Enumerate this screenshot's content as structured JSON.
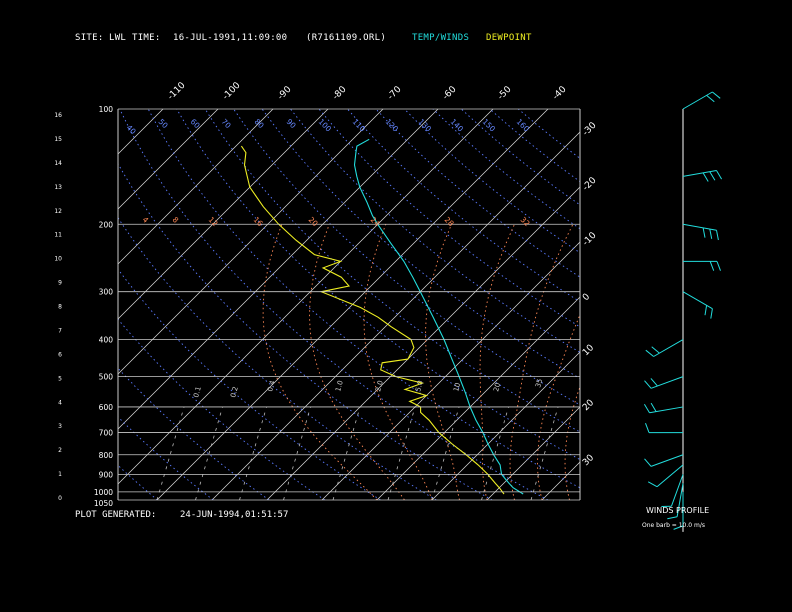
{
  "header": {
    "site_label": "SITE:",
    "site_value": "LWL",
    "time_label": "TIME:",
    "time_value": "16-JUL-1991,11:09:00",
    "file_value": "(R7161109.ORL)",
    "temp_legend": "TEMP/WINDS",
    "dew_legend": "DEWPOINT",
    "temp_color": "#22dddd",
    "dew_color": "#eeee22"
  },
  "footer": {
    "generated_label": "PLOT GENERATED:",
    "generated_value": "24-JUN-1994,01:51:57",
    "winds_title": "WINDS PROFILE",
    "barb_note": "One barb = 10.0 m/s"
  },
  "chart_data": {
    "type": "line",
    "pressure_levels": [
      "100",
      "200",
      "300",
      "400",
      "500",
      "600",
      "700",
      "800",
      "900",
      "1000",
      "1050"
    ],
    "height_km_ticks": [
      "16",
      "15",
      "14",
      "13",
      "12",
      "11",
      "10",
      "9",
      "8",
      "7",
      "6",
      "5",
      "4",
      "3",
      "2",
      "1",
      "0"
    ],
    "temperature_ticks": [
      "-110",
      "-100",
      "-90",
      "-80",
      "-70",
      "-60",
      "-50",
      "-40",
      "-30",
      "-20",
      "-10",
      "0",
      "10",
      "20",
      "30"
    ],
    "dry_adiabat_labels": [
      "40",
      "50",
      "60",
      "70",
      "80",
      "90",
      "100",
      "110",
      "120",
      "130",
      "140",
      "150",
      "160"
    ],
    "mixing_ratio_labels": [
      "0.1",
      "0.2",
      "0.4",
      "1.0",
      "2.0",
      "5.0",
      "10",
      "20",
      "35"
    ],
    "series": [
      {
        "name": "TEMP/WINDS",
        "points": [
          {
            "p": 1013,
            "t": 25.5
          },
          {
            "p": 975,
            "t": 22.5
          },
          {
            "p": 950,
            "t": 21
          },
          {
            "p": 925,
            "t": 19.5
          },
          {
            "p": 900,
            "t": 18
          },
          {
            "p": 875,
            "t": 17
          },
          {
            "p": 850,
            "t": 16
          },
          {
            "p": 800,
            "t": 13
          },
          {
            "p": 750,
            "t": 10
          },
          {
            "p": 700,
            "t": 7
          },
          {
            "p": 650,
            "t": 3.5
          },
          {
            "p": 600,
            "t": 0
          },
          {
            "p": 550,
            "t": -3.5
          },
          {
            "p": 500,
            "t": -7.5
          },
          {
            "p": 450,
            "t": -12
          },
          {
            "p": 400,
            "t": -17
          },
          {
            "p": 350,
            "t": -23
          },
          {
            "p": 300,
            "t": -30
          },
          {
            "p": 275,
            "t": -34
          },
          {
            "p": 250,
            "t": -38.5
          },
          {
            "p": 225,
            "t": -44
          },
          {
            "p": 200,
            "t": -50
          },
          {
            "p": 190,
            "t": -52.5
          },
          {
            "p": 175,
            "t": -56
          },
          {
            "p": 160,
            "t": -60
          },
          {
            "p": 150,
            "t": -62.5
          },
          {
            "p": 140,
            "t": -65
          },
          {
            "p": 130,
            "t": -67
          },
          {
            "p": 125,
            "t": -68
          },
          {
            "p": 120,
            "t": -67
          }
        ]
      },
      {
        "name": "DEWPOINT",
        "points": [
          {
            "p": 1013,
            "t": 22
          },
          {
            "p": 975,
            "t": 20
          },
          {
            "p": 950,
            "t": 18.5
          },
          {
            "p": 925,
            "t": 17
          },
          {
            "p": 900,
            "t": 15.5
          },
          {
            "p": 850,
            "t": 12
          },
          {
            "p": 800,
            "t": 8
          },
          {
            "p": 750,
            "t": 3.5
          },
          {
            "p": 700,
            "t": -1
          },
          {
            "p": 650,
            "t": -5
          },
          {
            "p": 620,
            "t": -8
          },
          {
            "p": 600,
            "t": -9
          },
          {
            "p": 580,
            "t": -12
          },
          {
            "p": 560,
            "t": -10
          },
          {
            "p": 540,
            "t": -15
          },
          {
            "p": 520,
            "t": -13
          },
          {
            "p": 500,
            "t": -19
          },
          {
            "p": 480,
            "t": -23
          },
          {
            "p": 460,
            "t": -24
          },
          {
            "p": 450,
            "t": -20
          },
          {
            "p": 420,
            "t": -21
          },
          {
            "p": 400,
            "t": -23
          },
          {
            "p": 370,
            "t": -29
          },
          {
            "p": 350,
            "t": -33
          },
          {
            "p": 330,
            "t": -38
          },
          {
            "p": 300,
            "t": -48
          },
          {
            "p": 290,
            "t": -44
          },
          {
            "p": 275,
            "t": -47
          },
          {
            "p": 260,
            "t": -52
          },
          {
            "p": 250,
            "t": -50
          },
          {
            "p": 240,
            "t": -56
          },
          {
            "p": 220,
            "t": -62
          },
          {
            "p": 200,
            "t": -68
          },
          {
            "p": 180,
            "t": -74
          },
          {
            "p": 160,
            "t": -80
          },
          {
            "p": 140,
            "t": -85
          },
          {
            "p": 130,
            "t": -87
          },
          {
            "p": 125,
            "t": -89
          }
        ]
      }
    ],
    "winds": [
      {
        "p": 1000,
        "dir": 180,
        "speed": 6
      },
      {
        "p": 950,
        "dir": 190,
        "speed": 8
      },
      {
        "p": 900,
        "dir": 200,
        "speed": 6
      },
      {
        "p": 850,
        "dir": 230,
        "speed": 6
      },
      {
        "p": 800,
        "dir": 250,
        "speed": 8
      },
      {
        "p": 700,
        "dir": 270,
        "speed": 14
      },
      {
        "p": 600,
        "dir": 260,
        "speed": 20
      },
      {
        "p": 500,
        "dir": 250,
        "speed": 22
      },
      {
        "p": 400,
        "dir": 240,
        "speed": 18
      },
      {
        "p": 300,
        "dir": 120,
        "speed": 22
      },
      {
        "p": 250,
        "dir": 90,
        "speed": 20
      },
      {
        "p": 200,
        "dir": 100,
        "speed": 28
      },
      {
        "p": 150,
        "dir": 80,
        "speed": 26
      },
      {
        "p": 100,
        "dir": 60,
        "speed": 18
      }
    ]
  }
}
